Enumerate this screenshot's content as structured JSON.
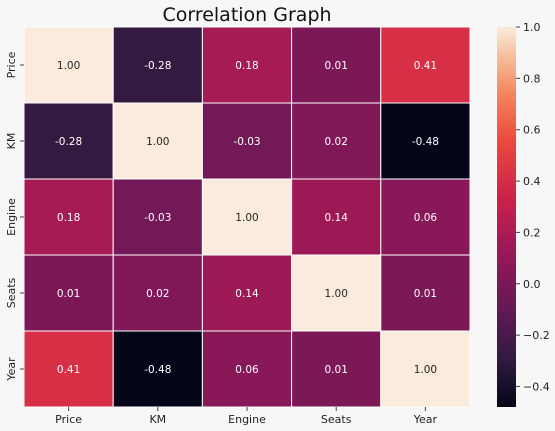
{
  "chart_data": {
    "type": "heatmap",
    "title": "Correlation Graph",
    "x_labels": [
      "Price",
      "KM",
      "Engine",
      "Seats",
      "Year"
    ],
    "y_labels": [
      "Price",
      "KM",
      "Engine",
      "Seats",
      "Year"
    ],
    "values": [
      [
        1.0,
        -0.28,
        0.18,
        0.01,
        0.41
      ],
      [
        -0.28,
        1.0,
        -0.03,
        0.02,
        -0.48
      ],
      [
        0.18,
        -0.03,
        1.0,
        0.14,
        0.06
      ],
      [
        0.01,
        0.02,
        0.14,
        1.0,
        0.01
      ],
      [
        0.41,
        -0.48,
        0.06,
        0.01,
        1.0
      ]
    ],
    "cell_labels": [
      [
        "1.00",
        "-0.28",
        "0.18",
        "0.01",
        "0.41"
      ],
      [
        "-0.28",
        "1.00",
        "-0.03",
        "0.02",
        "-0.48"
      ],
      [
        "0.18",
        "-0.03",
        "1.00",
        "0.14",
        "0.06"
      ],
      [
        "0.01",
        "0.02",
        "0.14",
        "1.00",
        "0.01"
      ],
      [
        "0.41",
        "-0.48",
        "0.06",
        "0.01",
        "1.00"
      ]
    ],
    "colorbar": {
      "vmin": -0.48,
      "vmax": 1.0,
      "ticks": [
        1.0,
        0.8,
        0.6,
        0.4,
        0.2,
        0.0,
        -0.2,
        -0.4
      ],
      "tick_labels": [
        "1.0",
        "0.8",
        "0.6",
        "0.4",
        "0.2",
        "0.0",
        "−0.2",
        "−0.4"
      ],
      "colormap": "rocket"
    },
    "grid": true
  }
}
